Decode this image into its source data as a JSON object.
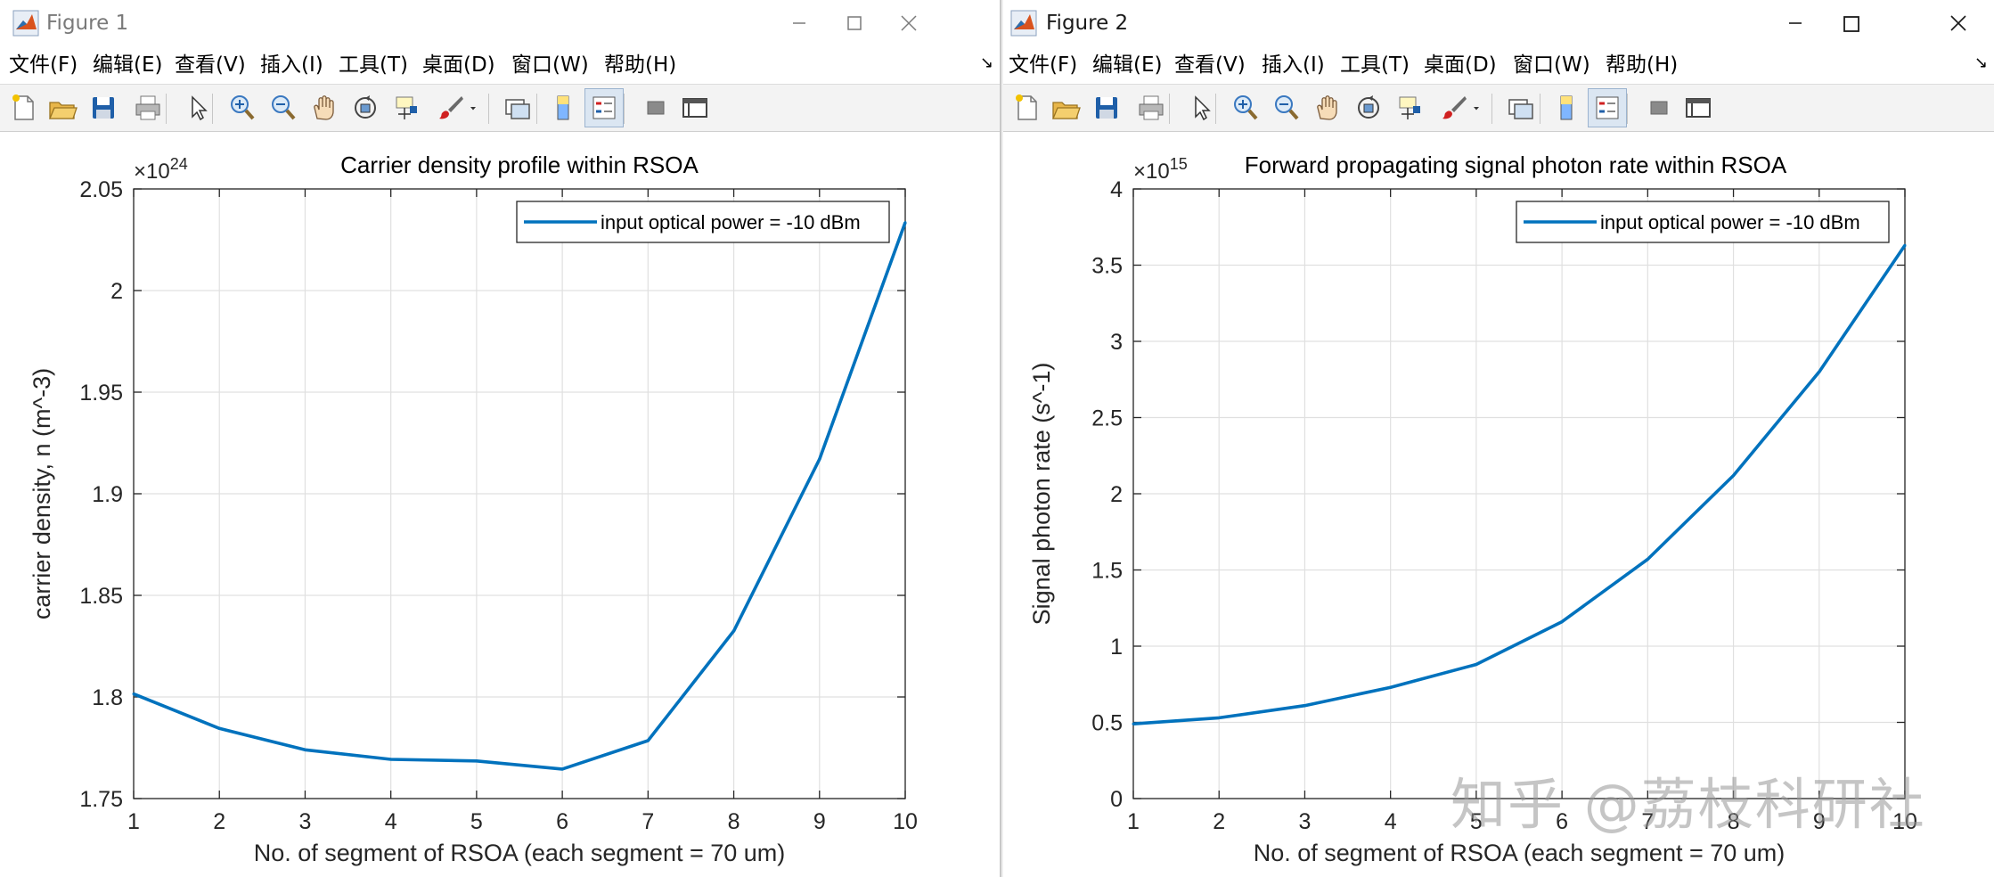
{
  "windows": [
    {
      "title": "Figure 1",
      "menu": [
        "文件(F)",
        "编辑(E)",
        "查看(V)",
        "插入(I)",
        "工具(T)",
        "桌面(D)",
        "窗口(W)",
        "帮助(H)"
      ],
      "menu_more": "↘"
    },
    {
      "title": "Figure 2",
      "menu": [
        "文件(F)",
        "编辑(E)",
        "查看(V)",
        "插入(I)",
        "工具(T)",
        "桌面(D)",
        "窗口(W)",
        "帮助(H)"
      ],
      "menu_more": "↘"
    }
  ],
  "toolbar_icons": [
    "new-figure-icon",
    "open-file-icon",
    "save-icon",
    "print-icon",
    "pointer-icon",
    "zoom-in-icon",
    "zoom-out-icon",
    "pan-hand-icon",
    "rotate-3d-icon",
    "data-cursor-icon",
    "brush-icon",
    "brush-dropdown-icon",
    "link-plot-icon",
    "colorbar-icon",
    "legend-icon",
    "hide-plot-tools-icon",
    "show-plot-tools-icon"
  ],
  "colors": {
    "line": "#0072BD",
    "grid": "#e0e0e0",
    "axis": "#262626"
  },
  "watermark": "知乎 @荔枝科研社",
  "chart_data": [
    {
      "type": "line",
      "title": "Carrier density profile within RSOA",
      "xlabel": "No. of segment of RSOA (each segment = 70 um)",
      "ylabel": "carrier density, n (m^-3)",
      "exponent_base": "×10",
      "exponent_power": "24",
      "x": [
        1,
        2,
        3,
        4,
        5,
        6,
        7,
        8,
        9,
        10
      ],
      "series": [
        {
          "name": "input optical power = -10 dBm",
          "values": [
            1.8015,
            1.7845,
            1.774,
            1.7693,
            1.7685,
            1.7645,
            1.7785,
            1.8325,
            1.917,
            2.0335
          ]
        }
      ],
      "xlim": [
        1,
        10
      ],
      "ylim": [
        1.75,
        2.05
      ],
      "xticks": [
        "1",
        "2",
        "3",
        "4",
        "5",
        "6",
        "7",
        "8",
        "9",
        "10"
      ],
      "yticks": [
        "1.75",
        "1.8",
        "1.85",
        "1.9",
        "1.95",
        "2",
        "2.05"
      ],
      "grid": true,
      "legend_position": "top-right"
    },
    {
      "type": "line",
      "title": "Forward propagating signal photon rate within RSOA",
      "xlabel": "No. of segment of RSOA (each segment = 70 um)",
      "ylabel": "Signal photon rate (s^-1)",
      "exponent_base": "×10",
      "exponent_power": "15",
      "x": [
        1,
        2,
        3,
        4,
        5,
        6,
        7,
        8,
        9,
        10
      ],
      "series": [
        {
          "name": "input optical power = -10 dBm",
          "values": [
            0.49,
            0.53,
            0.61,
            0.73,
            0.88,
            1.16,
            1.57,
            2.12,
            2.8,
            3.63
          ]
        }
      ],
      "xlim": [
        1,
        10
      ],
      "ylim": [
        0,
        4
      ],
      "xticks": [
        "1",
        "2",
        "3",
        "4",
        "5",
        "6",
        "7",
        "8",
        "9",
        "10"
      ],
      "yticks": [
        "0",
        "0.5",
        "1",
        "1.5",
        "2",
        "2.5",
        "3",
        "3.5",
        "4"
      ],
      "grid": true,
      "legend_position": "top-right"
    }
  ]
}
